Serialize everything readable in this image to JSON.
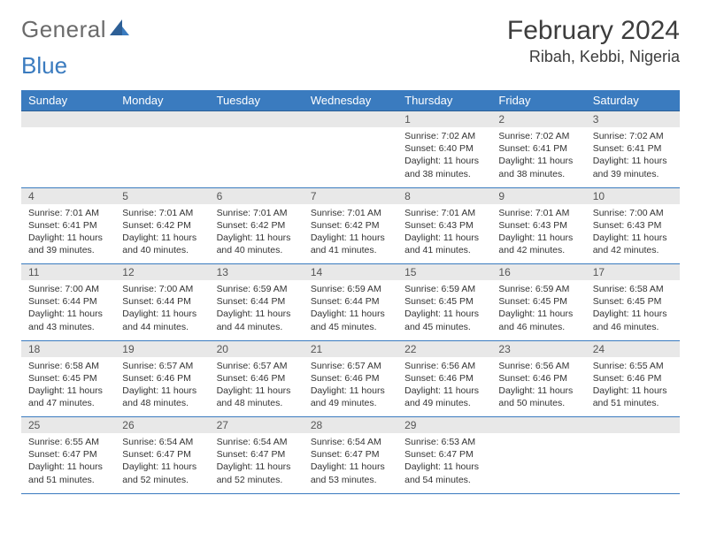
{
  "logo": {
    "text_a": "General",
    "text_b": "Blue"
  },
  "header": {
    "month": "February 2024",
    "location": "Ribah, Kebbi, Nigeria"
  },
  "day_names": [
    "Sunday",
    "Monday",
    "Tuesday",
    "Wednesday",
    "Thursday",
    "Friday",
    "Saturday"
  ],
  "colors": {
    "header_bg": "#3a7bbf",
    "header_text": "#ffffff",
    "daynum_bg": "#e8e8e8",
    "cell_border": "#3a7bbf",
    "body_bg": "#ffffff",
    "text": "#333333",
    "logo_grey": "#6b6b6b",
    "logo_blue": "#3a7bbf"
  },
  "table": {
    "rows": 5,
    "cols": 7,
    "font_size_cell": 10.5,
    "font_size_daynum": 12,
    "font_size_header": 13
  },
  "weeks": [
    [
      {
        "num": "",
        "sunrise": "",
        "sunset": "",
        "daylight": ""
      },
      {
        "num": "",
        "sunrise": "",
        "sunset": "",
        "daylight": ""
      },
      {
        "num": "",
        "sunrise": "",
        "sunset": "",
        "daylight": ""
      },
      {
        "num": "",
        "sunrise": "",
        "sunset": "",
        "daylight": ""
      },
      {
        "num": "1",
        "sunrise": "Sunrise: 7:02 AM",
        "sunset": "Sunset: 6:40 PM",
        "daylight": "Daylight: 11 hours and 38 minutes."
      },
      {
        "num": "2",
        "sunrise": "Sunrise: 7:02 AM",
        "sunset": "Sunset: 6:41 PM",
        "daylight": "Daylight: 11 hours and 38 minutes."
      },
      {
        "num": "3",
        "sunrise": "Sunrise: 7:02 AM",
        "sunset": "Sunset: 6:41 PM",
        "daylight": "Daylight: 11 hours and 39 minutes."
      }
    ],
    [
      {
        "num": "4",
        "sunrise": "Sunrise: 7:01 AM",
        "sunset": "Sunset: 6:41 PM",
        "daylight": "Daylight: 11 hours and 39 minutes."
      },
      {
        "num": "5",
        "sunrise": "Sunrise: 7:01 AM",
        "sunset": "Sunset: 6:42 PM",
        "daylight": "Daylight: 11 hours and 40 minutes."
      },
      {
        "num": "6",
        "sunrise": "Sunrise: 7:01 AM",
        "sunset": "Sunset: 6:42 PM",
        "daylight": "Daylight: 11 hours and 40 minutes."
      },
      {
        "num": "7",
        "sunrise": "Sunrise: 7:01 AM",
        "sunset": "Sunset: 6:42 PM",
        "daylight": "Daylight: 11 hours and 41 minutes."
      },
      {
        "num": "8",
        "sunrise": "Sunrise: 7:01 AM",
        "sunset": "Sunset: 6:43 PM",
        "daylight": "Daylight: 11 hours and 41 minutes."
      },
      {
        "num": "9",
        "sunrise": "Sunrise: 7:01 AM",
        "sunset": "Sunset: 6:43 PM",
        "daylight": "Daylight: 11 hours and 42 minutes."
      },
      {
        "num": "10",
        "sunrise": "Sunrise: 7:00 AM",
        "sunset": "Sunset: 6:43 PM",
        "daylight": "Daylight: 11 hours and 42 minutes."
      }
    ],
    [
      {
        "num": "11",
        "sunrise": "Sunrise: 7:00 AM",
        "sunset": "Sunset: 6:44 PM",
        "daylight": "Daylight: 11 hours and 43 minutes."
      },
      {
        "num": "12",
        "sunrise": "Sunrise: 7:00 AM",
        "sunset": "Sunset: 6:44 PM",
        "daylight": "Daylight: 11 hours and 44 minutes."
      },
      {
        "num": "13",
        "sunrise": "Sunrise: 6:59 AM",
        "sunset": "Sunset: 6:44 PM",
        "daylight": "Daylight: 11 hours and 44 minutes."
      },
      {
        "num": "14",
        "sunrise": "Sunrise: 6:59 AM",
        "sunset": "Sunset: 6:44 PM",
        "daylight": "Daylight: 11 hours and 45 minutes."
      },
      {
        "num": "15",
        "sunrise": "Sunrise: 6:59 AM",
        "sunset": "Sunset: 6:45 PM",
        "daylight": "Daylight: 11 hours and 45 minutes."
      },
      {
        "num": "16",
        "sunrise": "Sunrise: 6:59 AM",
        "sunset": "Sunset: 6:45 PM",
        "daylight": "Daylight: 11 hours and 46 minutes."
      },
      {
        "num": "17",
        "sunrise": "Sunrise: 6:58 AM",
        "sunset": "Sunset: 6:45 PM",
        "daylight": "Daylight: 11 hours and 46 minutes."
      }
    ],
    [
      {
        "num": "18",
        "sunrise": "Sunrise: 6:58 AM",
        "sunset": "Sunset: 6:45 PM",
        "daylight": "Daylight: 11 hours and 47 minutes."
      },
      {
        "num": "19",
        "sunrise": "Sunrise: 6:57 AM",
        "sunset": "Sunset: 6:46 PM",
        "daylight": "Daylight: 11 hours and 48 minutes."
      },
      {
        "num": "20",
        "sunrise": "Sunrise: 6:57 AM",
        "sunset": "Sunset: 6:46 PM",
        "daylight": "Daylight: 11 hours and 48 minutes."
      },
      {
        "num": "21",
        "sunrise": "Sunrise: 6:57 AM",
        "sunset": "Sunset: 6:46 PM",
        "daylight": "Daylight: 11 hours and 49 minutes."
      },
      {
        "num": "22",
        "sunrise": "Sunrise: 6:56 AM",
        "sunset": "Sunset: 6:46 PM",
        "daylight": "Daylight: 11 hours and 49 minutes."
      },
      {
        "num": "23",
        "sunrise": "Sunrise: 6:56 AM",
        "sunset": "Sunset: 6:46 PM",
        "daylight": "Daylight: 11 hours and 50 minutes."
      },
      {
        "num": "24",
        "sunrise": "Sunrise: 6:55 AM",
        "sunset": "Sunset: 6:46 PM",
        "daylight": "Daylight: 11 hours and 51 minutes."
      }
    ],
    [
      {
        "num": "25",
        "sunrise": "Sunrise: 6:55 AM",
        "sunset": "Sunset: 6:47 PM",
        "daylight": "Daylight: 11 hours and 51 minutes."
      },
      {
        "num": "26",
        "sunrise": "Sunrise: 6:54 AM",
        "sunset": "Sunset: 6:47 PM",
        "daylight": "Daylight: 11 hours and 52 minutes."
      },
      {
        "num": "27",
        "sunrise": "Sunrise: 6:54 AM",
        "sunset": "Sunset: 6:47 PM",
        "daylight": "Daylight: 11 hours and 52 minutes."
      },
      {
        "num": "28",
        "sunrise": "Sunrise: 6:54 AM",
        "sunset": "Sunset: 6:47 PM",
        "daylight": "Daylight: 11 hours and 53 minutes."
      },
      {
        "num": "29",
        "sunrise": "Sunrise: 6:53 AM",
        "sunset": "Sunset: 6:47 PM",
        "daylight": "Daylight: 11 hours and 54 minutes."
      },
      {
        "num": "",
        "sunrise": "",
        "sunset": "",
        "daylight": ""
      },
      {
        "num": "",
        "sunrise": "",
        "sunset": "",
        "daylight": ""
      }
    ]
  ]
}
